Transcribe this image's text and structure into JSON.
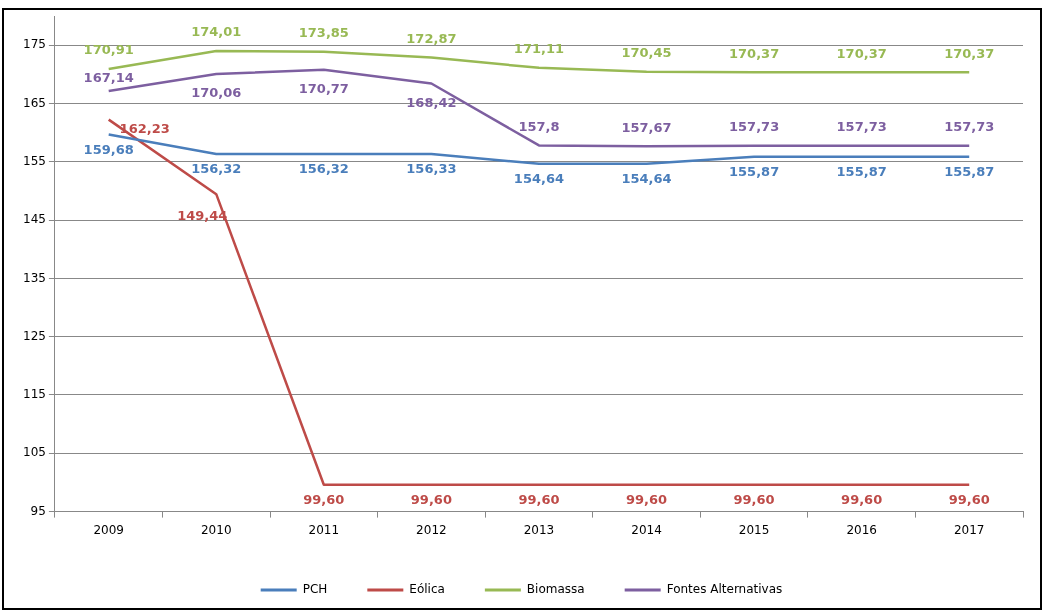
{
  "chart_data": {
    "type": "line",
    "categories": [
      "2009",
      "2010",
      "2011",
      "2012",
      "2013",
      "2014",
      "2015",
      "2016",
      "2017"
    ],
    "series": [
      {
        "name": "PCH",
        "color": "#4a7ebb",
        "values": [
          159.68,
          156.32,
          156.32,
          156.33,
          154.64,
          154.64,
          155.87,
          155.87,
          155.87
        ],
        "value_labels": [
          "159,68",
          "156,32",
          "156,32",
          "156,33",
          "154,64",
          "154,64",
          "155,87",
          "155,87",
          "155,87"
        ]
      },
      {
        "name": "Eólica",
        "color": "#be4b48",
        "values": [
          162.23,
          149.44,
          99.6,
          99.6,
          99.6,
          99.6,
          99.6,
          99.6,
          99.6
        ],
        "value_labels": [
          "162,23",
          "149,44",
          "99,60",
          "99,60",
          "99,60",
          "99,60",
          "99,60",
          "99,60",
          "99,60"
        ]
      },
      {
        "name": "Biomassa",
        "color": "#98b954",
        "values": [
          170.91,
          174.01,
          173.85,
          172.87,
          171.11,
          170.45,
          170.37,
          170.37,
          170.37
        ],
        "value_labels": [
          "170,91",
          "174,01",
          "173,85",
          "172,87",
          "171,11",
          "170,45",
          "170,37",
          "170,37",
          "170,37"
        ]
      },
      {
        "name": "Fontes Alternativas",
        "color": "#7d5fa0",
        "values": [
          167.14,
          170.06,
          170.77,
          168.42,
          157.8,
          157.67,
          157.73,
          157.73,
          157.73
        ],
        "value_labels": [
          "167,14",
          "170,06",
          "170,77",
          "168,42",
          "157,8",
          "157,67",
          "157,73",
          "157,73",
          "157,73"
        ]
      }
    ],
    "ylim": [
      95,
      180
    ],
    "yticks": [
      95,
      105,
      115,
      125,
      135,
      145,
      155,
      165,
      175
    ],
    "grid": "y",
    "legend": "bottom",
    "marker": "none",
    "line_style": "solid"
  }
}
